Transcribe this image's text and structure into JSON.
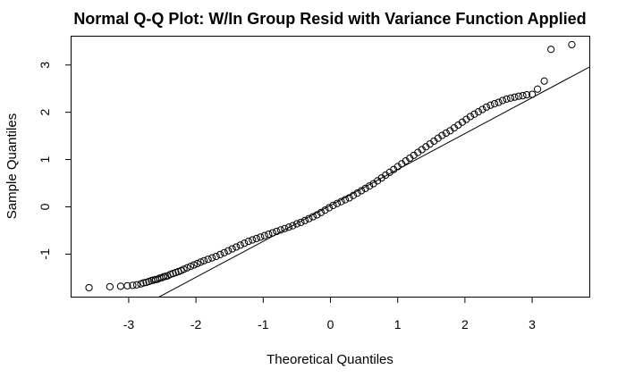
{
  "chart_data": {
    "type": "scatter",
    "title": "Normal Q-Q Plot: W/In Group Resid with Variance Function Applied",
    "xlabel": "Theoretical Quantiles",
    "ylabel": "Sample Quantiles",
    "xlim": [
      -3.85,
      3.85
    ],
    "ylim": [
      -1.9,
      3.6
    ],
    "xticks": [
      -3,
      -2,
      -1,
      0,
      1,
      2,
      3
    ],
    "yticks": [
      -1,
      0,
      1,
      2,
      3
    ],
    "x_tick_labels": [
      "-3",
      "-2",
      "-1",
      "0",
      "1",
      "2",
      "3"
    ],
    "y_tick_labels": [
      "-1",
      "0",
      "1",
      "2",
      "3"
    ],
    "grid": false,
    "point_style": "open-circle",
    "reference_line": {
      "intercept": 0.03,
      "slope": 0.76
    },
    "series": [
      {
        "points": [
          [
            -3.59,
            -1.71
          ],
          [
            -3.28,
            -1.69
          ],
          [
            -3.12,
            -1.68
          ],
          [
            -3.02,
            -1.67
          ],
          [
            -2.94,
            -1.66
          ],
          [
            -2.88,
            -1.65
          ],
          [
            -2.82,
            -1.63
          ],
          [
            -2.78,
            -1.61
          ],
          [
            -2.74,
            -1.6
          ],
          [
            -2.7,
            -1.58
          ],
          [
            -2.66,
            -1.56
          ],
          [
            -2.63,
            -1.55
          ],
          [
            -2.6,
            -1.54
          ],
          [
            -2.57,
            -1.53
          ],
          [
            -2.54,
            -1.51
          ],
          [
            -2.51,
            -1.5
          ],
          [
            -2.48,
            -1.48
          ],
          [
            -2.45,
            -1.47
          ],
          [
            -2.42,
            -1.46
          ],
          [
            -2.38,
            -1.43
          ],
          [
            -2.34,
            -1.41
          ],
          [
            -2.3,
            -1.39
          ],
          [
            -2.26,
            -1.37
          ],
          [
            -2.22,
            -1.35
          ],
          [
            -2.18,
            -1.32
          ],
          [
            -2.13,
            -1.29
          ],
          [
            -2.08,
            -1.26
          ],
          [
            -2.03,
            -1.23
          ],
          [
            -1.98,
            -1.2
          ],
          [
            -1.93,
            -1.17
          ],
          [
            -1.88,
            -1.14
          ],
          [
            -1.82,
            -1.11
          ],
          [
            -1.76,
            -1.08
          ],
          [
            -1.7,
            -1.05
          ],
          [
            -1.64,
            -1.01
          ],
          [
            -1.58,
            -0.97
          ],
          [
            -1.52,
            -0.93
          ],
          [
            -1.46,
            -0.89
          ],
          [
            -1.4,
            -0.85
          ],
          [
            -1.34,
            -0.81
          ],
          [
            -1.28,
            -0.77
          ],
          [
            -1.22,
            -0.73
          ],
          [
            -1.16,
            -0.7
          ],
          [
            -1.1,
            -0.67
          ],
          [
            -1.04,
            -0.64
          ],
          [
            -0.98,
            -0.61
          ],
          [
            -0.92,
            -0.58
          ],
          [
            -0.86,
            -0.55
          ],
          [
            -0.8,
            -0.52
          ],
          [
            -0.74,
            -0.49
          ],
          [
            -0.68,
            -0.46
          ],
          [
            -0.62,
            -0.43
          ],
          [
            -0.56,
            -0.4
          ],
          [
            -0.5,
            -0.36
          ],
          [
            -0.44,
            -0.33
          ],
          [
            -0.38,
            -0.29
          ],
          [
            -0.32,
            -0.25
          ],
          [
            -0.26,
            -0.21
          ],
          [
            -0.2,
            -0.17
          ],
          [
            -0.14,
            -0.12
          ],
          [
            -0.08,
            -0.07
          ],
          [
            -0.02,
            -0.02
          ],
          [
            0.04,
            0.03
          ],
          [
            0.1,
            0.07
          ],
          [
            0.16,
            0.11
          ],
          [
            0.22,
            0.15
          ],
          [
            0.28,
            0.19
          ],
          [
            0.34,
            0.24
          ],
          [
            0.4,
            0.29
          ],
          [
            0.46,
            0.34
          ],
          [
            0.52,
            0.39
          ],
          [
            0.58,
            0.44
          ],
          [
            0.64,
            0.49
          ],
          [
            0.7,
            0.55
          ],
          [
            0.76,
            0.61
          ],
          [
            0.82,
            0.67
          ],
          [
            0.88,
            0.73
          ],
          [
            0.94,
            0.79
          ],
          [
            1.0,
            0.85
          ],
          [
            1.06,
            0.91
          ],
          [
            1.12,
            0.97
          ],
          [
            1.18,
            1.03
          ],
          [
            1.24,
            1.09
          ],
          [
            1.3,
            1.15
          ],
          [
            1.36,
            1.21
          ],
          [
            1.42,
            1.27
          ],
          [
            1.48,
            1.33
          ],
          [
            1.54,
            1.39
          ],
          [
            1.6,
            1.45
          ],
          [
            1.66,
            1.51
          ],
          [
            1.72,
            1.56
          ],
          [
            1.78,
            1.61
          ],
          [
            1.84,
            1.67
          ],
          [
            1.9,
            1.73
          ],
          [
            1.96,
            1.79
          ],
          [
            2.02,
            1.85
          ],
          [
            2.08,
            1.91
          ],
          [
            2.14,
            1.96
          ],
          [
            2.2,
            2.01
          ],
          [
            2.26,
            2.06
          ],
          [
            2.32,
            2.11
          ],
          [
            2.38,
            2.15
          ],
          [
            2.44,
            2.18
          ],
          [
            2.5,
            2.21
          ],
          [
            2.56,
            2.25
          ],
          [
            2.62,
            2.28
          ],
          [
            2.68,
            2.3
          ],
          [
            2.74,
            2.32
          ],
          [
            2.8,
            2.34
          ],
          [
            2.86,
            2.35
          ],
          [
            2.92,
            2.37
          ],
          [
            3.0,
            2.38
          ],
          [
            3.08,
            2.49
          ],
          [
            3.18,
            2.66
          ],
          [
            3.28,
            3.33
          ],
          [
            3.59,
            3.43
          ]
        ]
      }
    ]
  }
}
